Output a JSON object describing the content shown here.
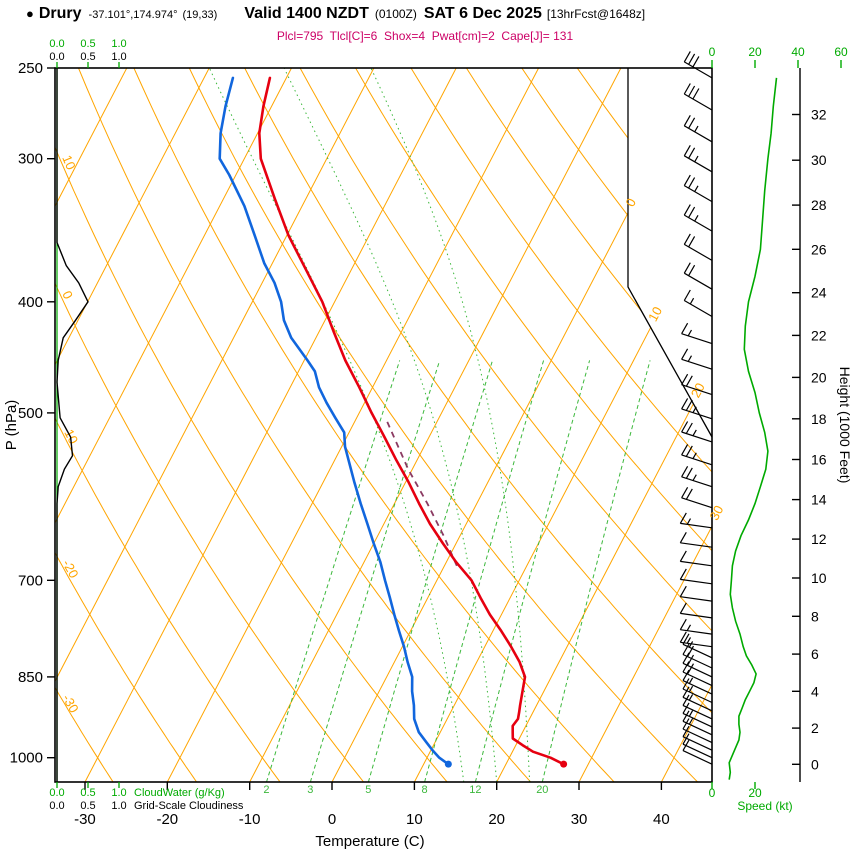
{
  "header": {
    "station_marker": "●",
    "station_name": "Drury",
    "coordinates": "-37.101°,174.974°",
    "grid_point": "(19,33)",
    "valid_label": "Valid 1400 NZDT",
    "valid_utc": "(0100Z)",
    "valid_date": "SAT 6 Dec 2025",
    "forecast_info": "[13hrFcst@1648z]",
    "indices": "Plcl=795  Tlcl[C]=6  Shox=4  Pwat[cm]=2  Cape[J]= 131"
  },
  "colors": {
    "orange": "#ffa500",
    "green": "#00aa00",
    "green_mix": "#3cb83c",
    "red": "#e60010",
    "blue": "#1166dd",
    "parcel": "#8b3a62",
    "magenta": "#cc0066",
    "black": "#000000"
  },
  "chart_data": {
    "type": "skewt-logp-sounding",
    "title": "Drury forecast sounding, valid 1400 NZDT SAT 6 Dec 2025",
    "profile_format": "[pressure_hPa, value]",
    "pressure_axis": {
      "label": "P (hPa)",
      "units": "hPa",
      "range": [
        250,
        1050
      ],
      "ticks": [
        250,
        300,
        400,
        500,
        700,
        850,
        1000
      ]
    },
    "temp_axis": {
      "label": "Temperature (C)",
      "units": "C",
      "ticks": [
        -30,
        -20,
        -10,
        0,
        10,
        20,
        30,
        40
      ]
    },
    "height_axis": {
      "label": "Height (1000 Feet)",
      "units": "1000 ft",
      "ticks": [
        0,
        2,
        4,
        6,
        8,
        10,
        12,
        14,
        16,
        18,
        20,
        22,
        24,
        26,
        28,
        30,
        32
      ]
    },
    "speed_axis": {
      "label": "Speed (kt)",
      "units": "kt",
      "ticks": [
        0,
        20,
        40,
        60
      ]
    },
    "cloudwater_scale": {
      "label": "CloudWater (g/Kg)",
      "ticks": [
        "0.0",
        "0.5",
        "1.0"
      ]
    },
    "cloudiness_scale": {
      "label": "Grid-Scale Cloudiness",
      "ticks": [
        "0.0",
        "0.5",
        "1.0"
      ]
    },
    "isotherm_labels": [
      0,
      10,
      20,
      30
    ],
    "dry_adiabat_labels": [
      10,
      0,
      -10,
      -20,
      -30
    ],
    "mixing_ratio_lines": [
      2,
      3,
      5,
      8,
      12,
      20
    ],
    "moist_adiabat_starts": [
      16,
      20,
      24
    ],
    "temperature_profile": [
      [
        1013,
        27
      ],
      [
        1000,
        25
      ],
      [
        988,
        22.5
      ],
      [
        975,
        20.8
      ],
      [
        962,
        19.2
      ],
      [
        950,
        18.8
      ],
      [
        938,
        18.4
      ],
      [
        925,
        18.6
      ],
      [
        912,
        18.3
      ],
      [
        900,
        18
      ],
      [
        875,
        17.4
      ],
      [
        850,
        16.8
      ],
      [
        825,
        15.2
      ],
      [
        800,
        13.2
      ],
      [
        775,
        11
      ],
      [
        750,
        8.6
      ],
      [
        725,
        6.4
      ],
      [
        700,
        4.2
      ],
      [
        675,
        1.2
      ],
      [
        650,
        -1.6
      ],
      [
        625,
        -4.4
      ],
      [
        600,
        -7
      ],
      [
        575,
        -9.6
      ],
      [
        550,
        -12.5
      ],
      [
        525,
        -15.4
      ],
      [
        500,
        -18.5
      ],
      [
        475,
        -21.6
      ],
      [
        450,
        -25
      ],
      [
        425,
        -28.2
      ],
      [
        400,
        -31.5
      ],
      [
        375,
        -35.5
      ],
      [
        350,
        -39.8
      ],
      [
        325,
        -43.8
      ],
      [
        300,
        -48
      ],
      [
        285,
        -49.8
      ],
      [
        270,
        -51
      ],
      [
        255,
        -52
      ]
    ],
    "dewpoint_profile": [
      [
        1013,
        13
      ],
      [
        1000,
        11.5
      ],
      [
        985,
        10.2
      ],
      [
        970,
        9
      ],
      [
        950,
        7.4
      ],
      [
        925,
        6
      ],
      [
        900,
        5.1
      ],
      [
        875,
        4
      ],
      [
        850,
        3.1
      ],
      [
        825,
        1.6
      ],
      [
        800,
        0.2
      ],
      [
        775,
        -1.4
      ],
      [
        750,
        -3
      ],
      [
        725,
        -4.6
      ],
      [
        700,
        -6.3
      ],
      [
        675,
        -8
      ],
      [
        650,
        -10
      ],
      [
        625,
        -12
      ],
      [
        600,
        -14.1
      ],
      [
        575,
        -16.2
      ],
      [
        550,
        -18.3
      ],
      [
        535,
        -19.6
      ],
      [
        520,
        -20.6
      ],
      [
        505,
        -22.6
      ],
      [
        490,
        -24.6
      ],
      [
        475,
        -26.5
      ],
      [
        460,
        -28
      ],
      [
        450,
        -29.6
      ],
      [
        430,
        -33
      ],
      [
        415,
        -35
      ],
      [
        400,
        -36.5
      ],
      [
        385,
        -38.5
      ],
      [
        370,
        -41
      ],
      [
        350,
        -43.9
      ],
      [
        330,
        -47
      ],
      [
        310,
        -50.8
      ],
      [
        300,
        -53
      ],
      [
        285,
        -54.5
      ],
      [
        270,
        -55.6
      ],
      [
        255,
        -56.5
      ]
    ],
    "parcel_path": [
      [
        680,
        1.5
      ],
      [
        640,
        -2
      ],
      [
        600,
        -6
      ],
      [
        560,
        -10.5
      ],
      [
        520,
        -14.8
      ],
      [
        505,
        -16.5
      ]
    ],
    "surface_markers": {
      "temperature": {
        "p": 1013,
        "t": 27
      },
      "dewpoint": {
        "p": 1013,
        "t": 13
      }
    },
    "cloudiness_profile": [
      [
        250,
        0
      ],
      [
        355,
        0
      ],
      [
        372,
        0.15
      ],
      [
        385,
        0.35
      ],
      [
        400,
        0.5
      ],
      [
        415,
        0.3
      ],
      [
        430,
        0.1
      ],
      [
        450,
        0.02
      ],
      [
        470,
        0
      ],
      [
        505,
        0.05
      ],
      [
        525,
        0.22
      ],
      [
        545,
        0.25
      ],
      [
        560,
        0.12
      ],
      [
        580,
        0.02
      ],
      [
        600,
        0
      ],
      [
        1050,
        0
      ]
    ],
    "cloudwater_profile": [
      [
        250,
        0
      ],
      [
        1050,
        0
      ]
    ],
    "wind_speed_profile": [
      [
        255,
        30
      ],
      [
        270,
        28.5
      ],
      [
        285,
        27.5
      ],
      [
        300,
        26
      ],
      [
        320,
        24.5
      ],
      [
        340,
        23.5
      ],
      [
        360,
        22.5
      ],
      [
        380,
        20
      ],
      [
        400,
        17
      ],
      [
        420,
        15.5
      ],
      [
        440,
        15
      ],
      [
        460,
        17
      ],
      [
        480,
        20
      ],
      [
        500,
        22
      ],
      [
        520,
        24.5
      ],
      [
        540,
        26
      ],
      [
        560,
        25
      ],
      [
        580,
        22.5
      ],
      [
        600,
        20
      ],
      [
        620,
        17
      ],
      [
        640,
        13.5
      ],
      [
        660,
        11
      ],
      [
        680,
        9.5
      ],
      [
        700,
        9
      ],
      [
        720,
        8.5
      ],
      [
        740,
        9.5
      ],
      [
        760,
        11
      ],
      [
        780,
        13
      ],
      [
        800,
        14.5
      ],
      [
        815,
        16
      ],
      [
        830,
        18.5
      ],
      [
        845,
        20.5
      ],
      [
        860,
        19.5
      ],
      [
        875,
        17.5
      ],
      [
        890,
        15.5
      ],
      [
        905,
        14
      ],
      [
        920,
        12.5
      ],
      [
        935,
        12.5
      ],
      [
        950,
        13
      ],
      [
        965,
        12.5
      ],
      [
        980,
        11
      ],
      [
        995,
        9.5
      ],
      [
        1010,
        8
      ],
      [
        1030,
        8.5
      ],
      [
        1045,
        8
      ]
    ],
    "wind_barbs": [
      [
        255,
        30
      ],
      [
        272,
        28
      ],
      [
        290,
        27
      ],
      [
        308,
        26
      ],
      [
        327,
        25
      ],
      [
        347,
        23
      ],
      [
        368,
        21
      ],
      [
        390,
        18
      ],
      [
        412,
        16
      ],
      [
        435,
        15
      ],
      [
        458,
        17
      ],
      [
        482,
        20
      ],
      [
        506,
        23
      ],
      [
        530,
        25
      ],
      [
        555,
        26
      ],
      [
        580,
        23
      ],
      [
        605,
        19
      ],
      [
        630,
        15
      ],
      [
        655,
        11
      ],
      [
        680,
        10
      ],
      [
        705,
        9
      ],
      [
        730,
        9
      ],
      [
        755,
        10
      ],
      [
        780,
        13
      ],
      [
        800,
        15
      ],
      [
        818,
        17
      ],
      [
        835,
        19
      ],
      [
        850,
        20
      ],
      [
        865,
        19
      ],
      [
        880,
        17
      ],
      [
        895,
        15
      ],
      [
        910,
        13
      ],
      [
        925,
        12
      ],
      [
        940,
        13
      ],
      [
        955,
        13
      ],
      [
        970,
        12
      ],
      [
        985,
        11
      ],
      [
        1000,
        9
      ],
      [
        1013,
        8
      ]
    ]
  }
}
